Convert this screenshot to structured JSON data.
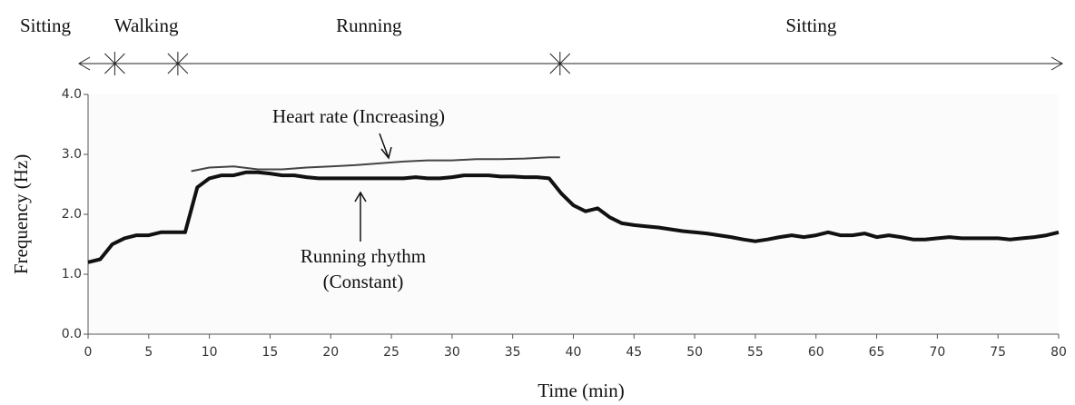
{
  "chart_data": {
    "type": "spectrogram",
    "x_label": "Time (min)",
    "y_label": "Frequency (Hz)",
    "xlim": [
      0,
      80
    ],
    "xticks": [
      0,
      5,
      10,
      15,
      20,
      25,
      30,
      35,
      40,
      45,
      50,
      55,
      60,
      65,
      70,
      75,
      80
    ],
    "ylim": [
      0,
      4
    ],
    "yticks": [
      {
        "value": 0,
        "label": "0.0"
      },
      {
        "value": 1,
        "label": "1.0"
      },
      {
        "value": 2,
        "label": "2.0"
      },
      {
        "value": 3,
        "label": "3.0"
      },
      {
        "value": 4,
        "label": "4.0"
      }
    ],
    "phases": [
      "Sitting",
      "Walking",
      "Running",
      "Sitting"
    ],
    "phase_boundaries": [
      2.2,
      7.4,
      38.9
    ],
    "series": [
      {
        "color": "#111111",
        "x": [
          0,
          1,
          2,
          3,
          4,
          5,
          6,
          7,
          8,
          9,
          10,
          11,
          12,
          13,
          14,
          15,
          16,
          17,
          18,
          19,
          20,
          21,
          22,
          23,
          24,
          25,
          26,
          27,
          28,
          29,
          30,
          31,
          32,
          33,
          34,
          35,
          36,
          37,
          38,
          39,
          40,
          41,
          42,
          43,
          44,
          45,
          46,
          47,
          48,
          49,
          50,
          51,
          52,
          53,
          54,
          55,
          56,
          57,
          58,
          59,
          60,
          61,
          62,
          63,
          64,
          65,
          66,
          67,
          68,
          69,
          70,
          71,
          72,
          73,
          74,
          75,
          76,
          77,
          78,
          79,
          80
        ],
        "values": [
          1.2,
          1.25,
          1.5,
          1.6,
          1.65,
          1.65,
          1.7,
          1.7,
          1.7,
          2.45,
          2.6,
          2.65,
          2.65,
          2.7,
          2.7,
          2.68,
          2.65,
          2.65,
          2.62,
          2.6,
          2.6,
          2.6,
          2.6,
          2.6,
          2.6,
          2.6,
          2.6,
          2.62,
          2.6,
          2.6,
          2.62,
          2.65,
          2.65,
          2.65,
          2.63,
          2.63,
          2.62,
          2.62,
          2.6,
          2.35,
          2.15,
          2.05,
          2.1,
          1.95,
          1.85,
          1.82,
          1.8,
          1.78,
          1.75,
          1.72,
          1.7,
          1.68,
          1.65,
          1.62,
          1.58,
          1.55,
          1.58,
          1.62,
          1.65,
          1.62,
          1.65,
          1.7,
          1.65,
          1.65,
          1.68,
          1.62,
          1.65,
          1.62,
          1.58,
          1.58,
          1.6,
          1.62,
          1.6,
          1.6,
          1.6,
          1.6,
          1.58,
          1.6,
          1.62,
          1.65,
          1.7
        ]
      },
      {
        "color": "#444444",
        "x": [
          8.5,
          10,
          12,
          14,
          16,
          18,
          20,
          22,
          24,
          26,
          28,
          30,
          32,
          34,
          36,
          38,
          38.9
        ],
        "values": [
          2.72,
          2.78,
          2.8,
          2.75,
          2.75,
          2.78,
          2.8,
          2.82,
          2.85,
          2.88,
          2.9,
          2.9,
          2.92,
          2.92,
          2.93,
          2.95,
          2.95
        ]
      }
    ],
    "annotations": [
      {
        "text": [
          "Heart rate (Increasing)"
        ]
      },
      {
        "text": [
          "Running rhythm",
          "(Constant)"
        ]
      }
    ]
  }
}
